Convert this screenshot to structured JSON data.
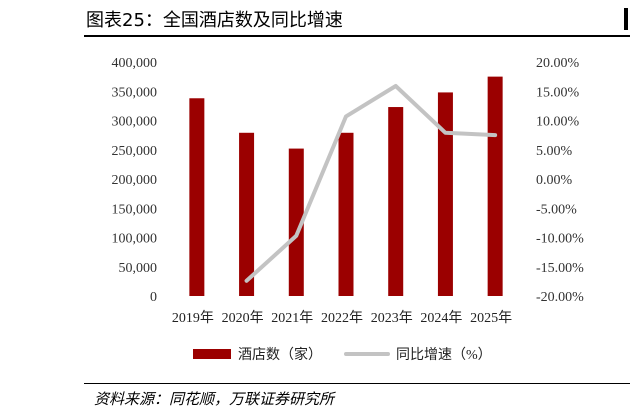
{
  "title": "图表25：全国酒店数及同比增速",
  "source": "资料来源：同花顺，万联证券研究所",
  "colors": {
    "bar": "#9b0000",
    "line": "#c3c3c3",
    "text": "#333333"
  },
  "chart_data": {
    "type": "bar+line",
    "title": "",
    "categories": [
      "2019年",
      "2020年",
      "2021年",
      "2022年",
      "2023年",
      "2024年",
      "2025年"
    ],
    "series": [
      {
        "name": "酒店数（家）",
        "type": "bar",
        "axis": "left",
        "values": [
          338000,
          279000,
          252000,
          279000,
          323000,
          348000,
          375000
        ]
      },
      {
        "name": "同比增速（%）",
        "type": "line",
        "axis": "right",
        "values": [
          null,
          -17.4,
          -9.7,
          10.7,
          15.9,
          7.9,
          7.5
        ]
      }
    ],
    "y_left": {
      "ylim": [
        0,
        400000
      ],
      "ticks": [
        "0",
        "50,000",
        "100,000",
        "150,000",
        "200,000",
        "250,000",
        "300,000",
        "350,000",
        "400,000"
      ]
    },
    "y_right": {
      "ylim": [
        -20,
        20
      ],
      "ticks": [
        "-20.00%",
        "-15.00%",
        "-10.00%",
        "-5.00%",
        "0.00%",
        "5.00%",
        "10.00%",
        "15.00%",
        "20.00%"
      ]
    },
    "legend_position": "bottom",
    "grid": false
  }
}
